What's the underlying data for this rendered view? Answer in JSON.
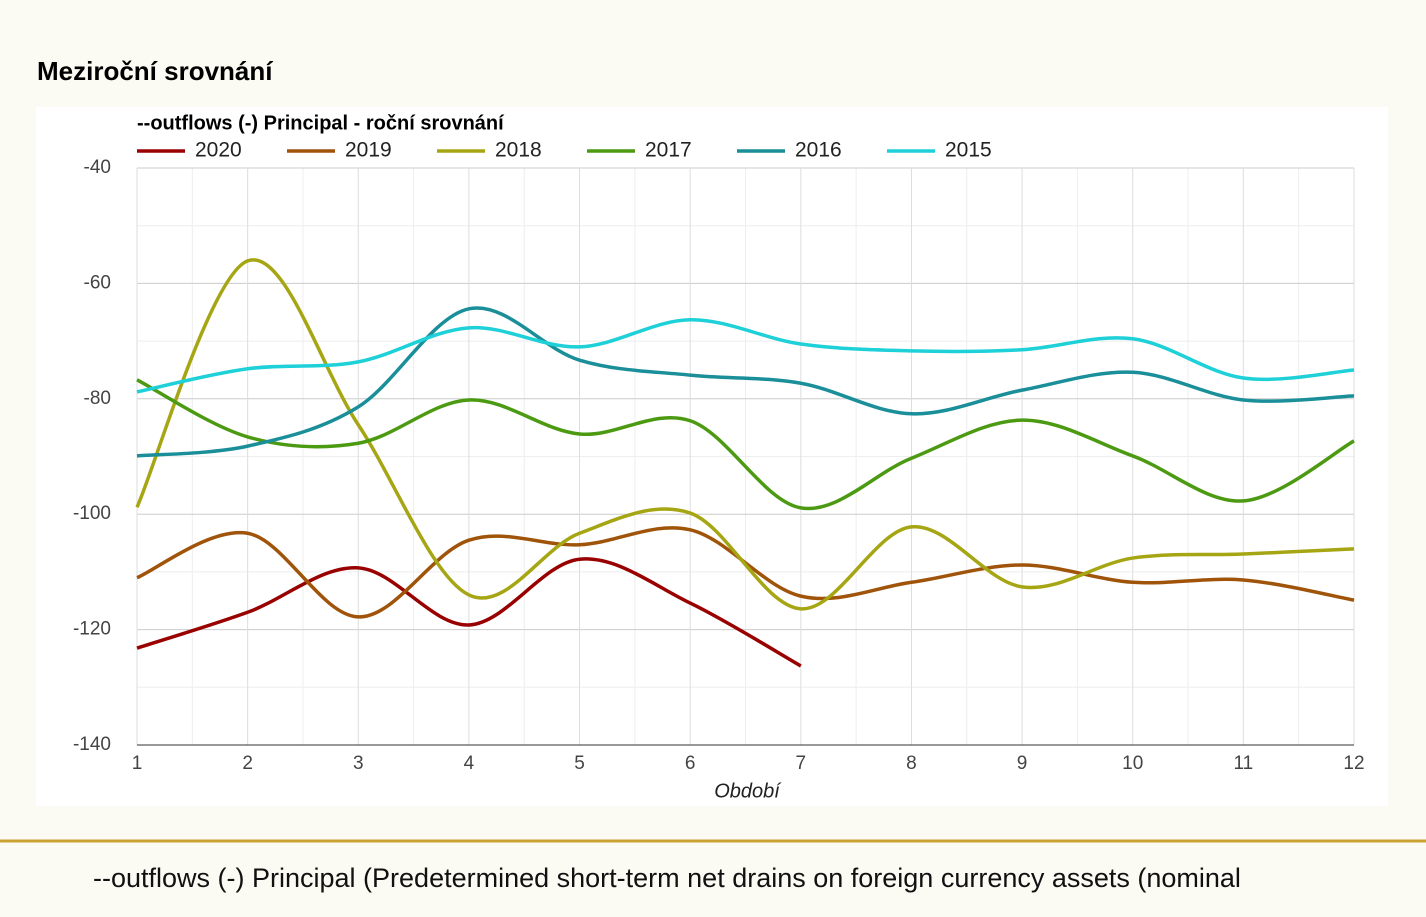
{
  "heading": "Meziroční srovnání",
  "chart_data": {
    "type": "line",
    "title": "--outflows (-) Principal - roční srovnání",
    "x_label": "Období",
    "x": [
      1,
      2,
      3,
      4,
      5,
      6,
      7,
      8,
      9,
      10,
      11,
      12
    ],
    "xlim": [
      1,
      12
    ],
    "xticks": [
      1,
      2,
      3,
      4,
      5,
      6,
      7,
      8,
      9,
      10,
      11,
      12
    ],
    "ylim": [
      -140,
      -40
    ],
    "yticks": [
      -40,
      -60,
      -80,
      -100,
      -120,
      -140
    ],
    "grid": true,
    "smooth": true,
    "legend": "top",
    "series": [
      {
        "name": "2020",
        "color": "#990000",
        "values": [
          -123.2,
          -117,
          -109.3,
          -119.2,
          -107.8,
          -115.4,
          -126.3,
          null,
          null,
          null,
          null,
          null
        ]
      },
      {
        "name": "2019",
        "color": "#a0540a",
        "values": [
          -111,
          -103.3,
          -117.8,
          -104.5,
          -105.3,
          -102.7,
          -114.2,
          -111.8,
          -108.8,
          -111.8,
          -111.4,
          -114.9
        ]
      },
      {
        "name": "2018",
        "color": "#a6a614",
        "values": [
          -98.8,
          -56.1,
          -84.5,
          -114,
          -103.3,
          -99.8,
          -116.4,
          -102.2,
          -112.6,
          -107.6,
          -106.9,
          -106
        ]
      },
      {
        "name": "2017",
        "color": "#4c9a12",
        "values": [
          -76.7,
          -86.6,
          -87.7,
          -80.2,
          -86.1,
          -83.8,
          -98.9,
          -90.3,
          -83.7,
          -89.9,
          -97.7,
          -87.3
        ]
      },
      {
        "name": "2016",
        "color": "#1a8f99",
        "values": [
          -89.9,
          -88.2,
          -81.4,
          -64.4,
          -73.3,
          -75.9,
          -77.3,
          -82.6,
          -78.5,
          -75.4,
          -80.2,
          -79.5
        ]
      },
      {
        "name": "2015",
        "color": "#1ed0d8",
        "values": [
          -78.8,
          -74.8,
          -73.6,
          -67.7,
          -71,
          -66.3,
          -70.5,
          -71.7,
          -71.5,
          -69.6,
          -76.4,
          -75
        ]
      }
    ]
  },
  "footer": "--outflows (-) Principal (Predetermined short-term net drains on foreign currency assets (nominal"
}
